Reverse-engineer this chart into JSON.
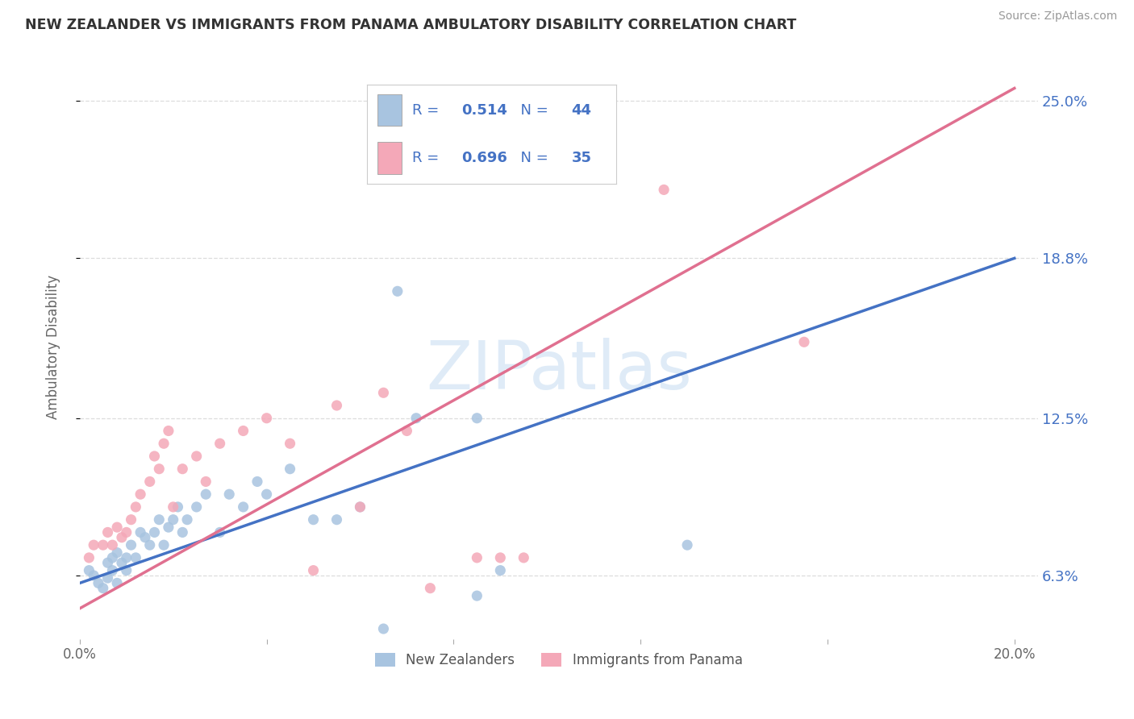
{
  "title": "NEW ZEALANDER VS IMMIGRANTS FROM PANAMA AMBULATORY DISABILITY CORRELATION CHART",
  "source": "Source: ZipAtlas.com",
  "ylabel": "Ambulatory Disability",
  "watermark": "ZIPatlas",
  "legend_label1": "New Zealanders",
  "legend_label2": "Immigrants from Panama",
  "r1": 0.514,
  "n1": 44,
  "r2": 0.696,
  "n2": 35,
  "color1": "#a8c4e0",
  "color2": "#f4a8b8",
  "line_color1": "#4472c4",
  "line_color2": "#e07090",
  "text_color": "#4472c4",
  "xlim": [
    0.0,
    0.205
  ],
  "ylim": [
    0.038,
    0.268
  ],
  "ytick_vals": [
    0.063,
    0.125,
    0.188,
    0.25
  ],
  "ytick_labels": [
    "6.3%",
    "12.5%",
    "18.8%",
    "25.0%"
  ],
  "blue_line_x0": 0.0,
  "blue_line_y0": 0.06,
  "blue_line_x1": 0.2,
  "blue_line_y1": 0.188,
  "pink_line_x0": 0.0,
  "pink_line_y0": 0.05,
  "pink_line_x1": 0.2,
  "pink_line_y1": 0.255,
  "blue_scatter_x": [
    0.002,
    0.003,
    0.004,
    0.005,
    0.006,
    0.006,
    0.007,
    0.007,
    0.008,
    0.008,
    0.009,
    0.01,
    0.01,
    0.011,
    0.012,
    0.013,
    0.014,
    0.015,
    0.016,
    0.017,
    0.018,
    0.019,
    0.02,
    0.021,
    0.022,
    0.023,
    0.025,
    0.027,
    0.03,
    0.032,
    0.035,
    0.038,
    0.04,
    0.045,
    0.05,
    0.055,
    0.06,
    0.065,
    0.068,
    0.072,
    0.085,
    0.09,
    0.13,
    0.085
  ],
  "blue_scatter_y": [
    0.065,
    0.063,
    0.06,
    0.058,
    0.062,
    0.068,
    0.065,
    0.07,
    0.06,
    0.072,
    0.068,
    0.07,
    0.065,
    0.075,
    0.07,
    0.08,
    0.078,
    0.075,
    0.08,
    0.085,
    0.075,
    0.082,
    0.085,
    0.09,
    0.08,
    0.085,
    0.09,
    0.095,
    0.08,
    0.095,
    0.09,
    0.1,
    0.095,
    0.105,
    0.085,
    0.085,
    0.09,
    0.042,
    0.175,
    0.125,
    0.125,
    0.065,
    0.075,
    0.055
  ],
  "pink_scatter_x": [
    0.002,
    0.003,
    0.005,
    0.006,
    0.007,
    0.008,
    0.009,
    0.01,
    0.011,
    0.012,
    0.013,
    0.015,
    0.016,
    0.017,
    0.018,
    0.019,
    0.02,
    0.022,
    0.025,
    0.027,
    0.03,
    0.035,
    0.04,
    0.045,
    0.05,
    0.055,
    0.06,
    0.065,
    0.07,
    0.075,
    0.085,
    0.09,
    0.095,
    0.125,
    0.155
  ],
  "pink_scatter_y": [
    0.07,
    0.075,
    0.075,
    0.08,
    0.075,
    0.082,
    0.078,
    0.08,
    0.085,
    0.09,
    0.095,
    0.1,
    0.11,
    0.105,
    0.115,
    0.12,
    0.09,
    0.105,
    0.11,
    0.1,
    0.115,
    0.12,
    0.125,
    0.115,
    0.065,
    0.13,
    0.09,
    0.135,
    0.12,
    0.058,
    0.07,
    0.07,
    0.07,
    0.215,
    0.155
  ],
  "bg_color": "#ffffff",
  "grid_color": "#dddddd"
}
